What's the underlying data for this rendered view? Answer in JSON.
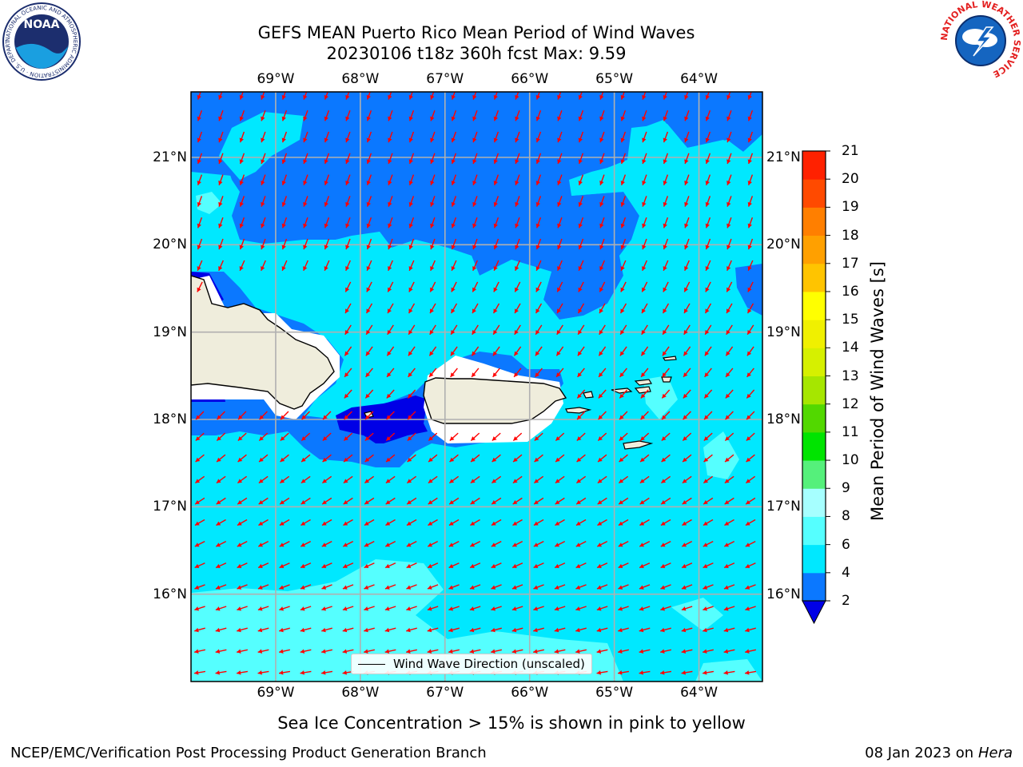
{
  "title": {
    "line1": "GEFS MEAN Puerto Rico Mean Period of Wind Waves",
    "line2": "20230106 t18z 360h fcst   Max: 9.59"
  },
  "logos": {
    "noaa": {
      "text": "NOAA",
      "ring_text": "NATIONAL OCEANIC AND ATMOSPHERIC ADMINISTRATION · U.S. DEPARTMENT OF COMMERCE"
    },
    "nws": {
      "ring_text": "NATIONAL WEATHER SERVICE"
    }
  },
  "map": {
    "lon_labels": [
      "69°W",
      "68°W",
      "67°W",
      "66°W",
      "65°W",
      "64°W"
    ],
    "lat_labels": [
      "21°N",
      "20°N",
      "19°N",
      "18°N",
      "17°N",
      "16°N"
    ],
    "lon_range": [
      -70.0,
      -63.25
    ],
    "lat_range": [
      15.0,
      21.75
    ],
    "grid": true,
    "colors": {
      "land": "#efeddc",
      "white_mask": "#ffffff",
      "grid": "#b0b0b0",
      "arrow": "#ff0000"
    },
    "legend": {
      "label": "Wind Wave Direction (unscaled)",
      "position": "bottom-center"
    }
  },
  "colorbar": {
    "label": "Mean Period of Wind Waves [s]",
    "ticks": [
      "2",
      "4",
      "6",
      "8",
      "9",
      "10",
      "11",
      "12",
      "13",
      "14",
      "15",
      "16",
      "17",
      "18",
      "19",
      "20",
      "21"
    ],
    "levels": [
      2,
      4,
      6,
      8,
      9,
      10,
      11,
      12,
      13,
      14,
      15,
      16,
      17,
      18,
      19,
      20,
      21
    ],
    "colors": [
      "#0b78ff",
      "#00e8ff",
      "#55ffff",
      "#a6ffff",
      "#55f07b",
      "#00e400",
      "#52d800",
      "#a6e600",
      "#d6f000",
      "#f0f000",
      "#ffff00",
      "#ffc400",
      "#ffa000",
      "#ff7f00",
      "#ff4a00",
      "#ff2100"
    ],
    "extend_color": "#0000e6"
  },
  "ice_note": "Sea Ice Concentration > 15% is shown in pink to yellow",
  "footer": {
    "left": "NCEP/EMC/Verification Post Processing Product Generation Branch",
    "date": "08 Jan 2023 on ",
    "machine": "Hera"
  }
}
